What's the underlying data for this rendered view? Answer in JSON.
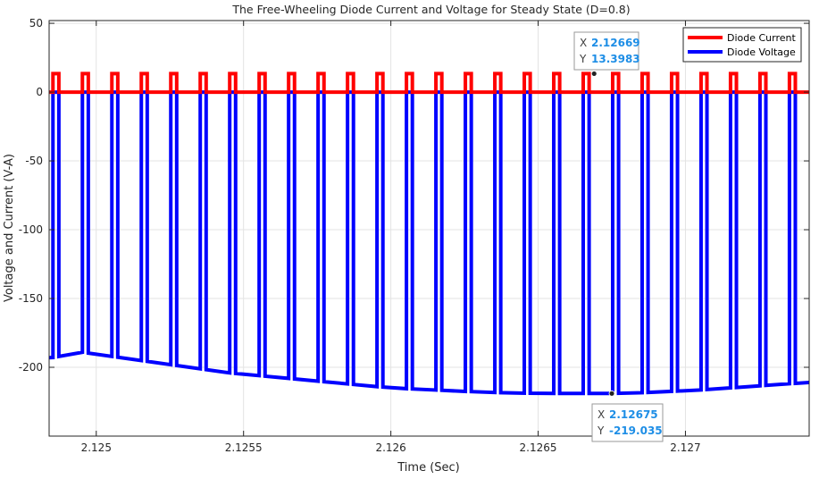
{
  "chart_data": {
    "type": "line",
    "title": "The Free-Wheeling Diode Current and Voltage for Steady State (D=0.8)",
    "xlabel": "Time (Sec)",
    "ylabel": "Voltage and Current (V-A)",
    "xlim": [
      2.12484,
      2.12742
    ],
    "ylim": [
      -250,
      52
    ],
    "xticks": [
      2.125,
      2.1255,
      2.126,
      2.1265,
      2.127
    ],
    "xticklabels": [
      "2.125",
      "2.1255",
      "2.126",
      "2.1265",
      "2.127"
    ],
    "yticks": [
      50,
      0,
      -50,
      -100,
      -150,
      -200
    ],
    "yticklabels": [
      "50",
      "0",
      "-50",
      "-100",
      "-150",
      "-200"
    ],
    "grid": true,
    "legend_position": "top-right",
    "switching_period": 0.0001,
    "first_pulse_time": 2.124853,
    "pulse_width": 2e-05,
    "series": [
      {
        "name": "Diode Current",
        "color": "#ff0000",
        "on_value": 13.4,
        "off_value": 0
      },
      {
        "name": "Diode Voltage",
        "color": "#0000ff",
        "on_value": 0,
        "off_envelope_t": [
          2.12485,
          2.12495,
          2.12505,
          2.12515,
          2.12525,
          2.12535,
          2.12545,
          2.12555,
          2.12565,
          2.12575,
          2.12585,
          2.12595,
          2.12605,
          2.12615,
          2.12625,
          2.12635,
          2.12645,
          2.12655,
          2.12665,
          2.12675,
          2.12685,
          2.12695,
          2.12705,
          2.12715,
          2.12725,
          2.12735,
          2.12742
        ],
        "off_envelope_v": [
          -193,
          -189,
          -192,
          -195,
          -198,
          -201,
          -204,
          -206,
          -208,
          -210,
          -212,
          -214,
          -215.5,
          -216.5,
          -217.5,
          -218.3,
          -218.8,
          -219,
          -219,
          -219,
          -218.5,
          -217.5,
          -216.5,
          -215,
          -213.5,
          -212,
          -211
        ]
      }
    ],
    "datatips": [
      {
        "x_label": "X",
        "x_value": "2.12669",
        "y_label": "Y",
        "y_value": "13.3983",
        "x": 2.12669,
        "y": 13.3983
      },
      {
        "x_label": "X",
        "x_value": "2.12675",
        "y_label": "Y",
        "y_value": "-219.035",
        "x": 2.12675,
        "y": -219.035
      }
    ]
  }
}
